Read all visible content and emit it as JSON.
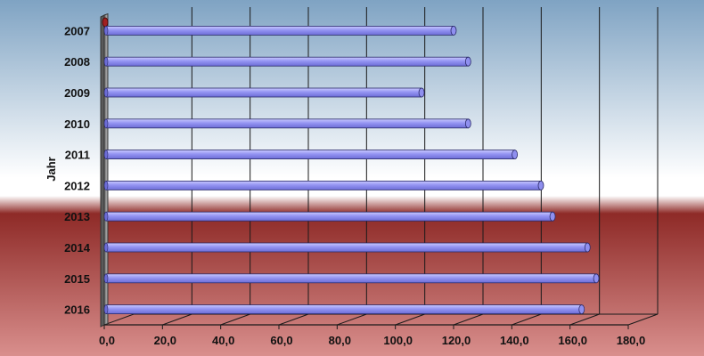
{
  "chart_data": {
    "type": "bar",
    "orientation": "horizontal",
    "categories": [
      "2007",
      "2008",
      "2009",
      "2010",
      "2011",
      "2012",
      "2013",
      "2014",
      "2015",
      "2016"
    ],
    "values": [
      120,
      125,
      109,
      125,
      141,
      150,
      154,
      166,
      169,
      164
    ],
    "title": "",
    "xlabel": "",
    "ylabel": "Jahr",
    "xlim": [
      0,
      180
    ],
    "x_ticks": [
      "0,0",
      "20,0",
      "40,0",
      "60,0",
      "80,0",
      "100,0",
      "120,0",
      "140,0",
      "160,0",
      "180,0"
    ],
    "grid": "vertical",
    "bar_color": "#8f8fef",
    "bar_edge_color": "#2b2b6a",
    "bg_top_color": "#7fa3c3",
    "bg_mid_color": "#ffffff",
    "bg_red_color": "#8e2a27",
    "bg_bottom_color": "#d98f8d"
  }
}
